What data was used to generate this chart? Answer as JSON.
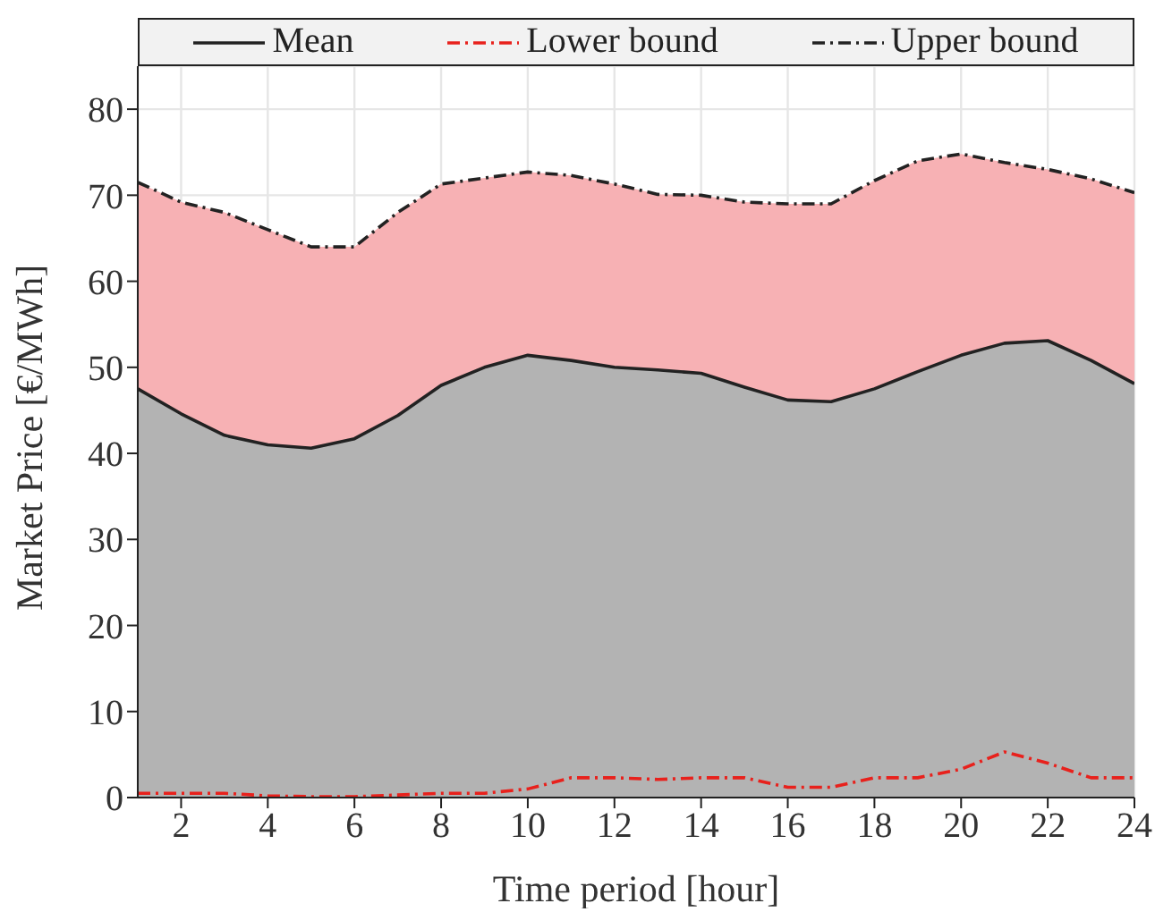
{
  "chart_data": {
    "type": "area",
    "xlabel": "Time period [hour]",
    "ylabel": "Market Price [€/MWh]",
    "x": [
      1,
      2,
      3,
      4,
      5,
      6,
      7,
      8,
      9,
      10,
      11,
      12,
      13,
      14,
      15,
      16,
      17,
      18,
      19,
      20,
      21,
      22,
      23,
      24
    ],
    "series": [
      {
        "name": "Mean",
        "color": "#b3b3b3",
        "line_style": "solid",
        "values": [
          47.5,
          44.6,
          42.1,
          41,
          40.6,
          41.7,
          44.4,
          47.9,
          50,
          51.4,
          50.8,
          50,
          49.7,
          49.3,
          47.7,
          46.2,
          46,
          47.5,
          49.5,
          51.4,
          52.8,
          53.1,
          50.8,
          48.1
        ]
      },
      {
        "name": "Lower bound",
        "type": "line",
        "color": "#e8211c",
        "line_style": "dashed",
        "values": [
          0.5,
          0.5,
          0.5,
          0.2,
          0.1,
          0.1,
          0.3,
          0.5,
          0.5,
          1,
          2.3,
          2.3,
          2.1,
          2.3,
          2.3,
          1.2,
          1.2,
          2.3,
          2.3,
          3.3,
          5.3,
          4,
          2.3,
          2.3
        ]
      },
      {
        "name": "Upper bound",
        "color": "#f7b1b4",
        "line_style": "dashed",
        "values": [
          71.5,
          69.2,
          68,
          66,
          64,
          64,
          68,
          71.3,
          72,
          72.7,
          72.3,
          71.3,
          70.1,
          70,
          69.2,
          69,
          69,
          71.7,
          74,
          74.8,
          73.8,
          73,
          71.9,
          70.3
        ]
      }
    ],
    "xlim": [
      1,
      24
    ],
    "xticks": [
      2,
      4,
      6,
      8,
      10,
      12,
      14,
      16,
      18,
      20,
      22,
      24
    ],
    "ylim": [
      0,
      85
    ],
    "yticks": [
      0,
      10,
      20,
      30,
      40,
      50,
      60,
      70,
      80
    ],
    "grid": true,
    "legend": "top"
  }
}
